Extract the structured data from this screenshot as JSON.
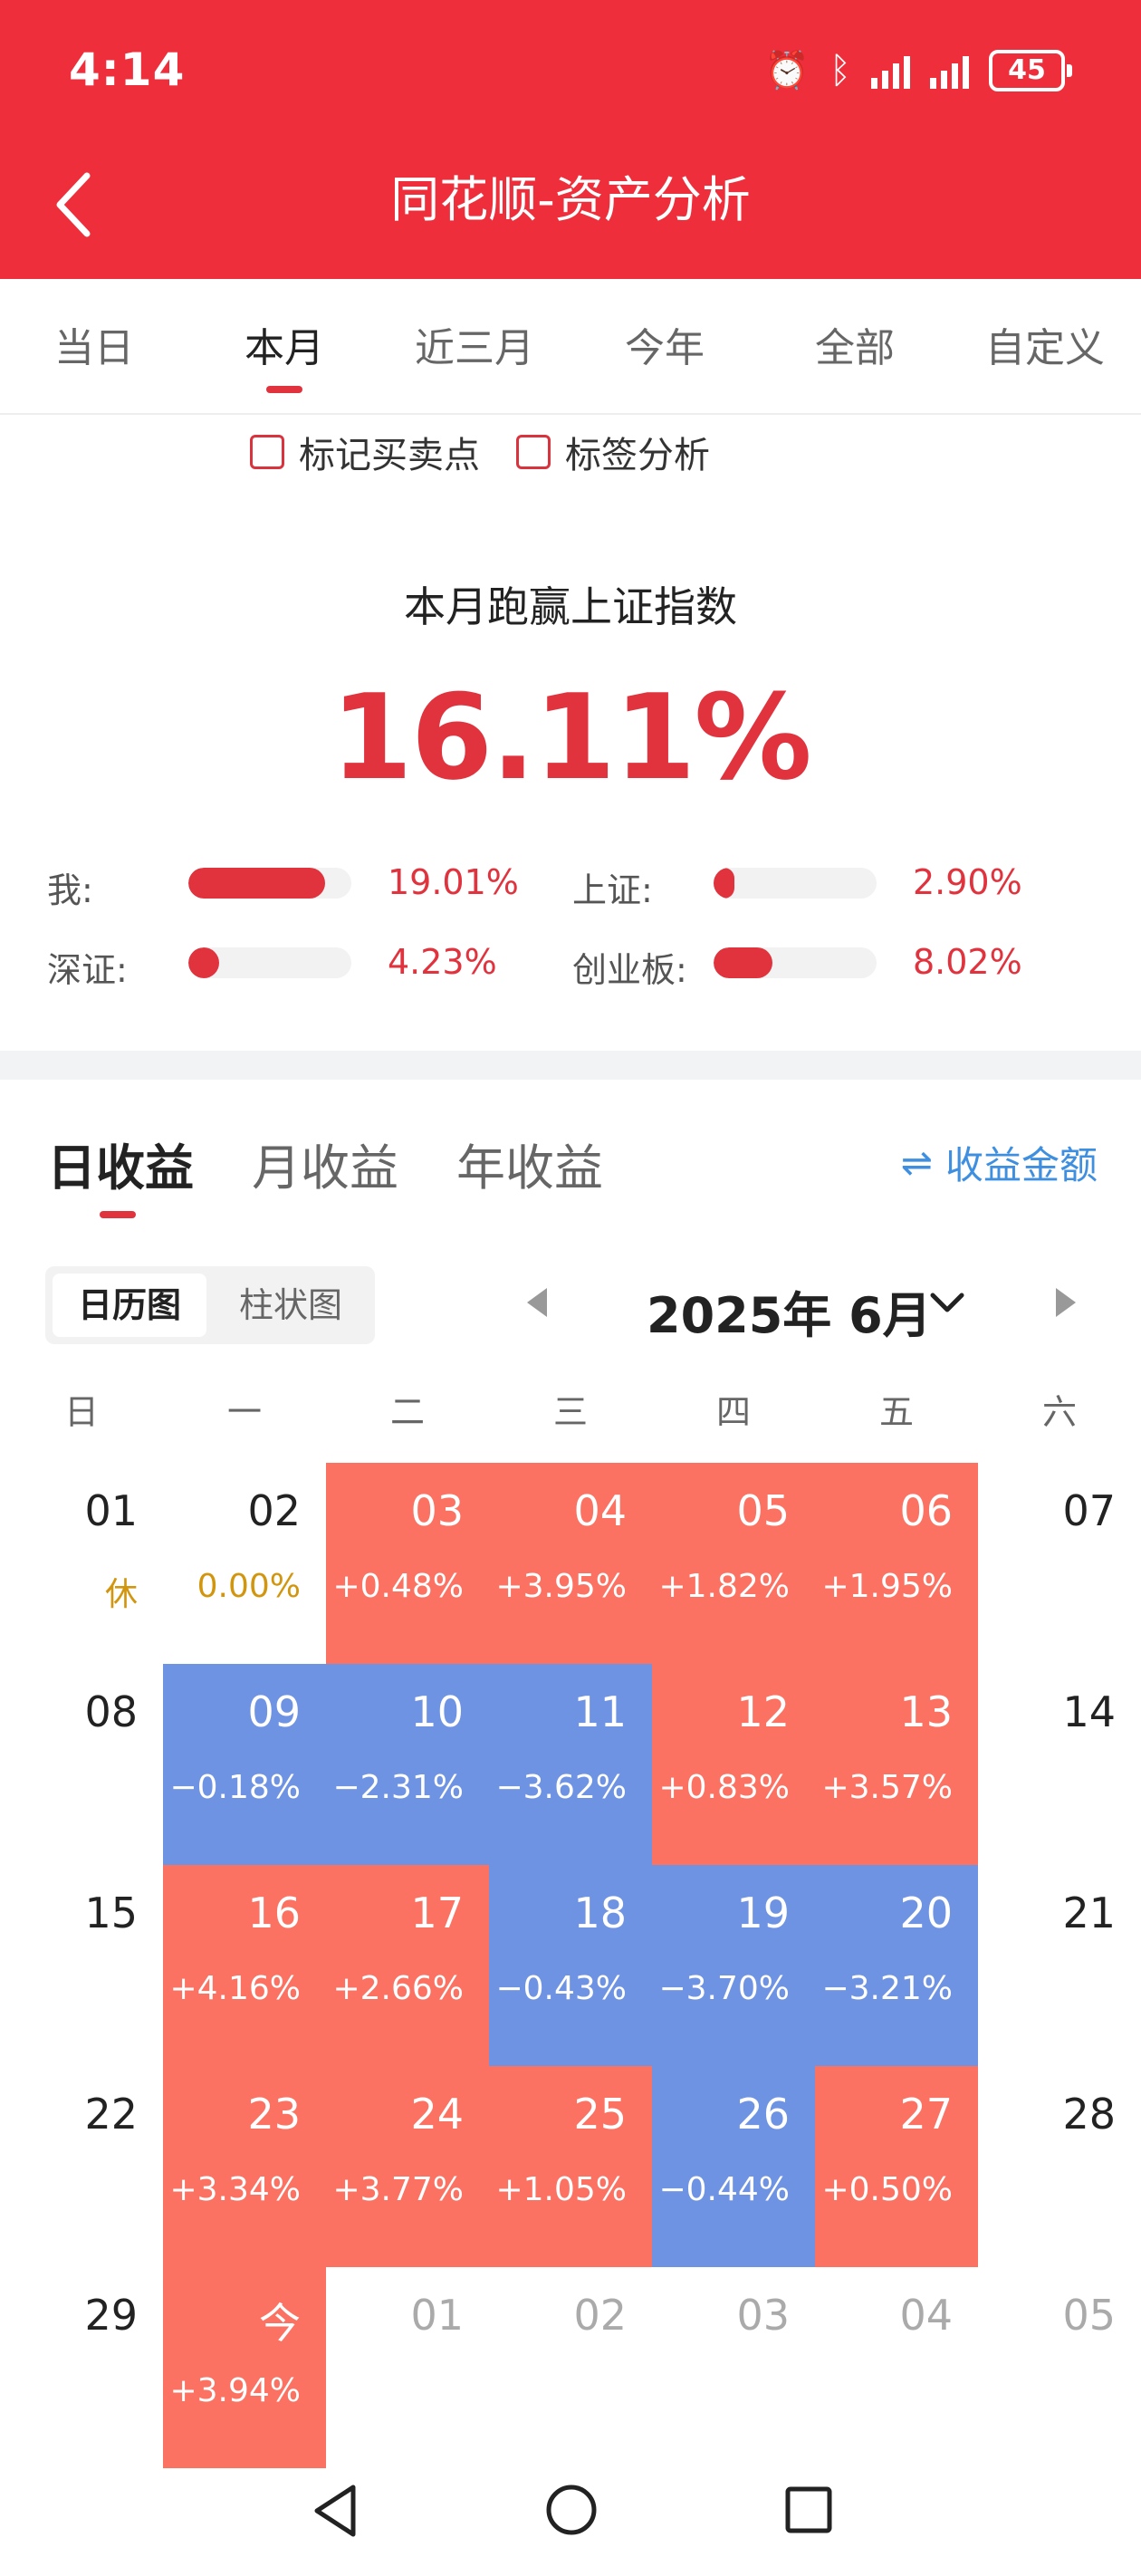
{
  "status": {
    "time": "4:14",
    "battery": "45"
  },
  "header": {
    "title": "同花顺-资产分析"
  },
  "period_tabs": [
    "当日",
    "本月",
    "近三月",
    "今年",
    "全部",
    "自定义"
  ],
  "period_active": "本月",
  "checkboxes": [
    "标记买卖点",
    "标签分析"
  ],
  "summary": {
    "label": "本月跑赢上证指数",
    "value": "16.11%"
  },
  "compare": [
    {
      "label": "我:",
      "value": "19.01%",
      "ratio": 0.84
    },
    {
      "label": "上证:",
      "value": "2.90%",
      "ratio": 0.13
    },
    {
      "label": "深证:",
      "value": "4.23%",
      "ratio": 0.19
    },
    {
      "label": "创业板:",
      "value": "8.02%",
      "ratio": 0.36
    }
  ],
  "return_tabs": [
    "日收益",
    "月收益",
    "年收益"
  ],
  "amount_toggle": "收益金额",
  "view_toggle": [
    "日历图",
    "柱状图"
  ],
  "month_title": "2025年 6月",
  "weekdays": [
    "日",
    "一",
    "二",
    "三",
    "四",
    "五",
    "六"
  ],
  "calendar": [
    [
      {
        "d": "01",
        "v": "休",
        "t": "hol"
      },
      {
        "d": "02",
        "v": "0.00%",
        "t": "flat"
      },
      {
        "d": "03",
        "v": "+0.48%",
        "t": "up"
      },
      {
        "d": "04",
        "v": "+3.95%",
        "t": "up"
      },
      {
        "d": "05",
        "v": "+1.82%",
        "t": "up"
      },
      {
        "d": "06",
        "v": "+1.95%",
        "t": "up"
      },
      {
        "d": "07",
        "v": "",
        "t": "plain"
      }
    ],
    [
      {
        "d": "08",
        "v": "",
        "t": "plain"
      },
      {
        "d": "09",
        "v": "−0.18%",
        "t": "down"
      },
      {
        "d": "10",
        "v": "−2.31%",
        "t": "down"
      },
      {
        "d": "11",
        "v": "−3.62%",
        "t": "down"
      },
      {
        "d": "12",
        "v": "+0.83%",
        "t": "up"
      },
      {
        "d": "13",
        "v": "+3.57%",
        "t": "up"
      },
      {
        "d": "14",
        "v": "",
        "t": "plain"
      }
    ],
    [
      {
        "d": "15",
        "v": "",
        "t": "plain"
      },
      {
        "d": "16",
        "v": "+4.16%",
        "t": "up"
      },
      {
        "d": "17",
        "v": "+2.66%",
        "t": "up"
      },
      {
        "d": "18",
        "v": "−0.43%",
        "t": "down"
      },
      {
        "d": "19",
        "v": "−3.70%",
        "t": "down"
      },
      {
        "d": "20",
        "v": "−3.21%",
        "t": "down"
      },
      {
        "d": "21",
        "v": "",
        "t": "plain"
      }
    ],
    [
      {
        "d": "22",
        "v": "",
        "t": "plain"
      },
      {
        "d": "23",
        "v": "+3.34%",
        "t": "up"
      },
      {
        "d": "24",
        "v": "+3.77%",
        "t": "up"
      },
      {
        "d": "25",
        "v": "+1.05%",
        "t": "up"
      },
      {
        "d": "26",
        "v": "−0.44%",
        "t": "down"
      },
      {
        "d": "27",
        "v": "+0.50%",
        "t": "up"
      },
      {
        "d": "28",
        "v": "",
        "t": "plain"
      }
    ],
    [
      {
        "d": "29",
        "v": "",
        "t": "plain"
      },
      {
        "d": "今",
        "v": "+3.94%",
        "t": "up"
      },
      {
        "d": "01",
        "v": "",
        "t": "other"
      },
      {
        "d": "02",
        "v": "",
        "t": "other"
      },
      {
        "d": "03",
        "v": "",
        "t": "other"
      },
      {
        "d": "04",
        "v": "",
        "t": "other"
      },
      {
        "d": "05",
        "v": "",
        "t": "other"
      }
    ]
  ],
  "colors": {
    "brand_red": "#ee2e3b",
    "up": "#fb7263",
    "down": "#6f93e3",
    "link": "#3f8fe0"
  }
}
